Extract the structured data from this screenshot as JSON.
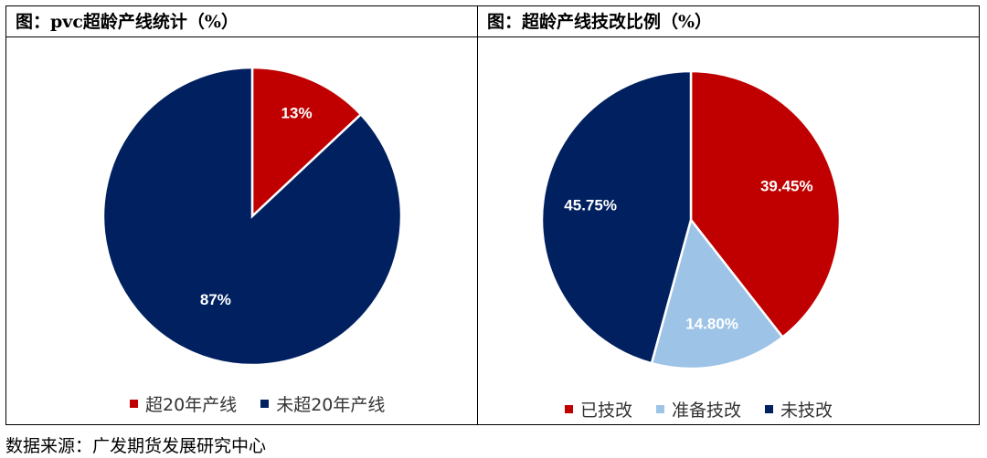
{
  "colors": {
    "red": "#C00000",
    "navy": "#002060",
    "lightblue": "#9DC3E6"
  },
  "chart_data": [
    {
      "type": "pie",
      "title": "图：pvc超龄产线统计（%）",
      "categories": [
        "超20年产线",
        "未超20年产线"
      ],
      "values": [
        13,
        87
      ],
      "labels": [
        "13%",
        "87%"
      ],
      "colors": [
        "#C00000",
        "#002060"
      ],
      "legend": "bottom"
    },
    {
      "type": "pie",
      "title": "图：超龄产线技改比例（%）",
      "categories": [
        "已技改",
        "准备技改",
        "未技改"
      ],
      "values": [
        39.45,
        14.8,
        45.75
      ],
      "labels": [
        "39.45%",
        "14.80%",
        "45.75%"
      ],
      "colors": [
        "#C00000",
        "#9DC3E6",
        "#002060"
      ],
      "legend": "bottom"
    }
  ],
  "footer": {
    "source": "数据来源：广发期货发展研究中心"
  }
}
